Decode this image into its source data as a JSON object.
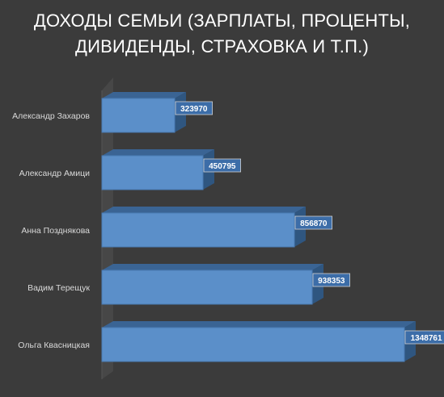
{
  "chart_data": {
    "type": "bar",
    "orientation": "horizontal",
    "style": "3d",
    "title_lines": [
      "ДОХОДЫ СЕМЬИ (ЗАРПЛАТЫ, ПРОЦЕНТЫ,",
      "ДИВИДЕНДЫ,  СТРАХОВКА И Т.П.)"
    ],
    "categories": [
      "Александр Захаров",
      "Александр Амици",
      "Анна Позднякова",
      "Вадим Терещук",
      "Ольга Квасницкая"
    ],
    "values": [
      323970,
      450795,
      856870,
      938353,
      1348761
    ],
    "xlim": [
      0,
      1400000
    ],
    "grid": false,
    "legend": "none",
    "colors": {
      "background": "#3b3b3b",
      "bar_front": "#5b8fc9",
      "bar_top": "#3a6494",
      "bar_side": "#2f5680",
      "wall": "#474747",
      "label_box": "#3c6da8"
    }
  }
}
